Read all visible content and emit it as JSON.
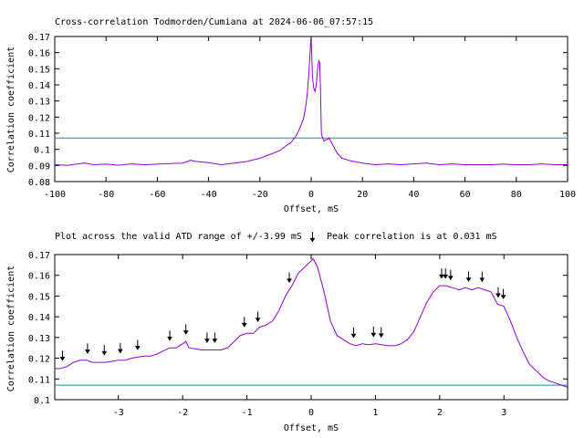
{
  "chart_data": [
    {
      "type": "line",
      "title": "Cross-correlation Todmorden/Cumiana at 2024-06-06_07:57:15",
      "xlabel": "Offset, mS",
      "ylabel": "Correlation coefficient",
      "xlim": [
        -100,
        100
      ],
      "ylim": [
        0.08,
        0.17
      ],
      "xticks": [
        "-100",
        "-80",
        "-60",
        "-40",
        "-20",
        "0",
        "20",
        "40",
        "60",
        "80",
        "100"
      ],
      "yticks": [
        "0.08",
        "0.09",
        "0.1",
        "0.11",
        "0.12",
        "0.13",
        "0.14",
        "0.15",
        "0.16",
        "0.17"
      ],
      "grid": false,
      "threshold": 0.107,
      "series_color": "#9400d3",
      "threshold_color": "#1a8fa6",
      "x": [
        -100,
        -95,
        -90,
        -88,
        -85,
        -80,
        -75,
        -70,
        -65,
        -60,
        -55,
        -50,
        -47,
        -45,
        -40,
        -35,
        -30,
        -25,
        -20,
        -15,
        -12,
        -10,
        -8,
        -7,
        -6,
        -5,
        -4,
        -3,
        -2.5,
        -2,
        -1.5,
        -1,
        -0.5,
        -0.2,
        0,
        0.2,
        0.5,
        1,
        1.5,
        2,
        2.5,
        3,
        3.3,
        3.6,
        4,
        4.5,
        5,
        5.5,
        6,
        7,
        8,
        10,
        12,
        15,
        20,
        25,
        30,
        35,
        40,
        45,
        50,
        55,
        60,
        65,
        70,
        75,
        80,
        85,
        90,
        95,
        100
      ],
      "y": [
        0.0905,
        0.09,
        0.0912,
        0.0915,
        0.0905,
        0.0908,
        0.0902,
        0.091,
        0.0905,
        0.0908,
        0.0912,
        0.0915,
        0.0932,
        0.0925,
        0.0918,
        0.0905,
        0.0915,
        0.0925,
        0.0945,
        0.0975,
        0.0995,
        0.102,
        0.104,
        0.106,
        0.108,
        0.111,
        0.115,
        0.119,
        0.123,
        0.128,
        0.135,
        0.145,
        0.158,
        0.166,
        0.169,
        0.16,
        0.145,
        0.138,
        0.136,
        0.14,
        0.15,
        0.155,
        0.154,
        0.14,
        0.11,
        0.107,
        0.105,
        0.106,
        0.106,
        0.107,
        0.104,
        0.098,
        0.0945,
        0.093,
        0.0915,
        0.0905,
        0.091,
        0.0905,
        0.091,
        0.0915,
        0.0905,
        0.091,
        0.0905,
        0.0905,
        0.0905,
        0.0908,
        0.0905,
        0.0905,
        0.091,
        0.0905,
        0.0905
      ]
    },
    {
      "type": "line",
      "title": "Plot across the valid ATD range of +/-3.99 mS",
      "annotation": "Peak correlation is at 0.031 mS",
      "xlabel": "Offset, mS",
      "ylabel": "Correlation coefficient",
      "xlim": [
        -3.99,
        3.99
      ],
      "ylim": [
        0.1,
        0.17
      ],
      "xticks": [
        "-3",
        "-2",
        "-1",
        "0",
        "1",
        "2",
        "3"
      ],
      "yticks": [
        "0.1",
        "0.11",
        "0.12",
        "0.13",
        "0.14",
        "0.15",
        "0.16",
        "0.17"
      ],
      "grid": false,
      "threshold": 0.107,
      "series_color": "#9400d3",
      "threshold_color": "#1a8fa6",
      "x": [
        -3.99,
        -3.9,
        -3.8,
        -3.7,
        -3.6,
        -3.5,
        -3.4,
        -3.3,
        -3.2,
        -3.1,
        -3.0,
        -2.9,
        -2.8,
        -2.7,
        -2.6,
        -2.5,
        -2.4,
        -2.3,
        -2.2,
        -2.1,
        -2.0,
        -1.95,
        -1.9,
        -1.8,
        -1.7,
        -1.6,
        -1.5,
        -1.4,
        -1.3,
        -1.2,
        -1.1,
        -1.0,
        -0.9,
        -0.8,
        -0.7,
        -0.6,
        -0.5,
        -0.4,
        -0.3,
        -0.2,
        -0.1,
        0.0,
        0.03,
        0.1,
        0.2,
        0.3,
        0.4,
        0.5,
        0.6,
        0.7,
        0.8,
        0.9,
        1.0,
        1.1,
        1.2,
        1.3,
        1.4,
        1.5,
        1.6,
        1.7,
        1.8,
        1.9,
        2.0,
        2.1,
        2.2,
        2.3,
        2.4,
        2.5,
        2.6,
        2.7,
        2.8,
        2.9,
        3.0,
        3.1,
        3.2,
        3.3,
        3.4,
        3.5,
        3.6,
        3.7,
        3.8,
        3.9,
        3.99
      ],
      "y": [
        0.115,
        0.115,
        0.116,
        0.118,
        0.119,
        0.119,
        0.118,
        0.118,
        0.118,
        0.1185,
        0.119,
        0.119,
        0.12,
        0.1205,
        0.121,
        0.121,
        0.122,
        0.1235,
        0.125,
        0.125,
        0.127,
        0.128,
        0.125,
        0.1245,
        0.124,
        0.124,
        0.124,
        0.124,
        0.125,
        0.128,
        0.131,
        0.132,
        0.132,
        0.135,
        0.136,
        0.138,
        0.143,
        0.15,
        0.155,
        0.161,
        0.164,
        0.167,
        0.168,
        0.164,
        0.152,
        0.138,
        0.131,
        0.129,
        0.127,
        0.126,
        0.127,
        0.1265,
        0.127,
        0.1265,
        0.126,
        0.126,
        0.127,
        0.129,
        0.133,
        0.14,
        0.147,
        0.152,
        0.155,
        0.155,
        0.154,
        0.153,
        0.154,
        0.153,
        0.154,
        0.153,
        0.152,
        0.146,
        0.145,
        0.138,
        0.13,
        0.123,
        0.117,
        0.114,
        0.111,
        0.109,
        0.108,
        0.107,
        0.106
      ],
      "markers": [
        -3.87,
        -3.48,
        -3.22,
        -2.97,
        -2.7,
        -2.2,
        -1.95,
        -1.62,
        -1.5,
        -1.04,
        -0.83,
        -0.34,
        0.02,
        0.66,
        0.97,
        1.09,
        2.03,
        2.09,
        2.17,
        2.45,
        2.66,
        2.91,
        2.99
      ]
    }
  ]
}
